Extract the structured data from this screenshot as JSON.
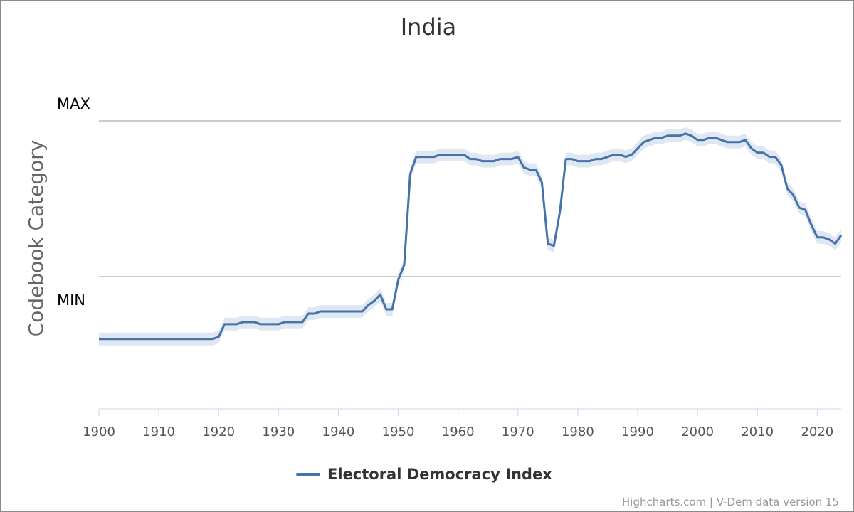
{
  "chart_data": {
    "type": "line",
    "title": "India",
    "ylabel": "Codebook Category",
    "y_max_label": "MAX",
    "y_min_label": "MIN",
    "ylim": [
      -0.36,
      1
    ],
    "xlim": [
      1900,
      2024
    ],
    "x_ticks": [
      1900,
      1910,
      1920,
      1930,
      1940,
      1950,
      1960,
      1970,
      1980,
      1990,
      2000,
      2010,
      2020
    ],
    "credit": "Highcharts.com | V-Dem data version 15",
    "colors": {
      "line": "#4572a7",
      "band": "#dfe7f2",
      "gridline": "#cccccc",
      "axis": "#ccd6eb"
    },
    "series": [
      {
        "name": "Electoral Democracy Index",
        "x": [
          1900,
          1905,
          1910,
          1915,
          1919,
          1920,
          1921,
          1922,
          1923,
          1924,
          1925,
          1926,
          1927,
          1928,
          1929,
          1930,
          1931,
          1932,
          1933,
          1934,
          1935,
          1936,
          1937,
          1938,
          1939,
          1940,
          1941,
          1942,
          1943,
          1944,
          1945,
          1946,
          1947,
          1948,
          1949,
          1950,
          1951,
          1952,
          1953,
          1954,
          1955,
          1956,
          1957,
          1958,
          1959,
          1960,
          1961,
          1962,
          1963,
          1964,
          1965,
          1966,
          1967,
          1968,
          1969,
          1970,
          1971,
          1972,
          1973,
          1974,
          1975,
          1976,
          1977,
          1978,
          1979,
          1980,
          1981,
          1982,
          1983,
          1984,
          1985,
          1986,
          1987,
          1988,
          1989,
          1990,
          1991,
          1992,
          1993,
          1994,
          1995,
          1996,
          1997,
          1998,
          1999,
          2000,
          2001,
          2002,
          2003,
          2004,
          2005,
          2006,
          2007,
          2008,
          2009,
          2010,
          2011,
          2012,
          2013,
          2014,
          2015,
          2016,
          2017,
          2018,
          2019,
          2020,
          2021,
          2022,
          2023,
          2024
        ],
        "values": [
          -0.03,
          -0.03,
          -0.03,
          -0.03,
          -0.03,
          -0.02,
          0.04,
          0.04,
          0.04,
          0.05,
          0.05,
          0.05,
          0.04,
          0.04,
          0.04,
          0.04,
          0.05,
          0.05,
          0.05,
          0.05,
          0.09,
          0.09,
          0.1,
          0.1,
          0.1,
          0.1,
          0.1,
          0.1,
          0.1,
          0.1,
          0.13,
          0.15,
          0.18,
          0.11,
          0.11,
          0.25,
          0.32,
          0.75,
          0.83,
          0.83,
          0.83,
          0.83,
          0.84,
          0.84,
          0.84,
          0.84,
          0.84,
          0.82,
          0.82,
          0.81,
          0.81,
          0.81,
          0.82,
          0.82,
          0.82,
          0.83,
          0.78,
          0.77,
          0.77,
          0.71,
          0.42,
          0.41,
          0.57,
          0.82,
          0.82,
          0.81,
          0.81,
          0.81,
          0.82,
          0.82,
          0.83,
          0.84,
          0.84,
          0.83,
          0.84,
          0.87,
          0.9,
          0.91,
          0.92,
          0.92,
          0.93,
          0.93,
          0.93,
          0.94,
          0.93,
          0.91,
          0.91,
          0.92,
          0.92,
          0.91,
          0.9,
          0.9,
          0.9,
          0.91,
          0.87,
          0.85,
          0.85,
          0.83,
          0.83,
          0.79,
          0.68,
          0.65,
          0.59,
          0.58,
          0.51,
          0.45,
          0.45,
          0.44,
          0.42,
          0.46
        ],
        "ci_half_width": 0.03
      }
    ]
  }
}
